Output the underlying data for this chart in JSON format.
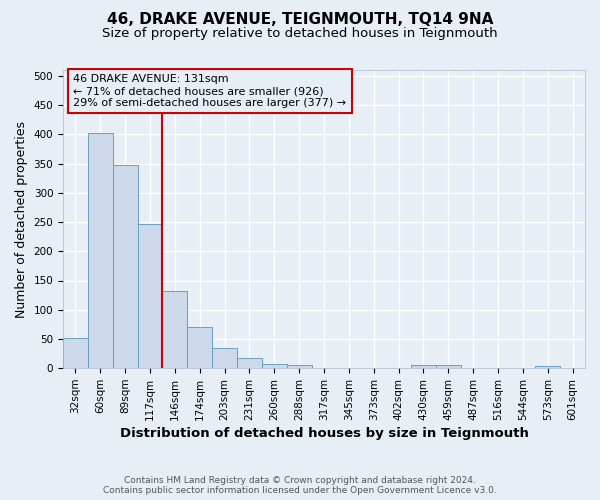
{
  "title": "46, DRAKE AVENUE, TEIGNMOUTH, TQ14 9NA",
  "subtitle": "Size of property relative to detached houses in Teignmouth",
  "xlabel": "Distribution of detached houses by size in Teignmouth",
  "ylabel": "Number of detached properties",
  "bar_labels": [
    "32sqm",
    "60sqm",
    "89sqm",
    "117sqm",
    "146sqm",
    "174sqm",
    "203sqm",
    "231sqm",
    "260sqm",
    "288sqm",
    "317sqm",
    "345sqm",
    "373sqm",
    "402sqm",
    "430sqm",
    "459sqm",
    "487sqm",
    "516sqm",
    "544sqm",
    "573sqm",
    "601sqm"
  ],
  "bar_values": [
    52,
    403,
    347,
    246,
    132,
    71,
    35,
    18,
    7,
    5,
    1,
    0,
    0,
    0,
    5,
    5,
    0,
    0,
    0,
    4,
    0
  ],
  "bar_color": "#ccd9ea",
  "bar_edge_color": "#6a9ec0",
  "annotation_title": "46 DRAKE AVENUE: 131sqm",
  "annotation_line1": "← 71% of detached houses are smaller (926)",
  "annotation_line2": "29% of semi-detached houses are larger (377) →",
  "vline_x": 3.5,
  "vline_color": "#cc0000",
  "ylim": [
    0,
    510
  ],
  "yticks": [
    0,
    50,
    100,
    150,
    200,
    250,
    300,
    350,
    400,
    450,
    500
  ],
  "footnote1": "Contains HM Land Registry data © Crown copyright and database right 2024.",
  "footnote2": "Contains public sector information licensed under the Open Government Licence v3.0.",
  "background_color": "#e8eef5",
  "grid_color": "#ffffff",
  "title_fontsize": 11,
  "subtitle_fontsize": 9.5,
  "axis_label_fontsize": 9,
  "tick_fontsize": 7.5,
  "annotation_fontsize": 8,
  "footnote_fontsize": 6.5
}
